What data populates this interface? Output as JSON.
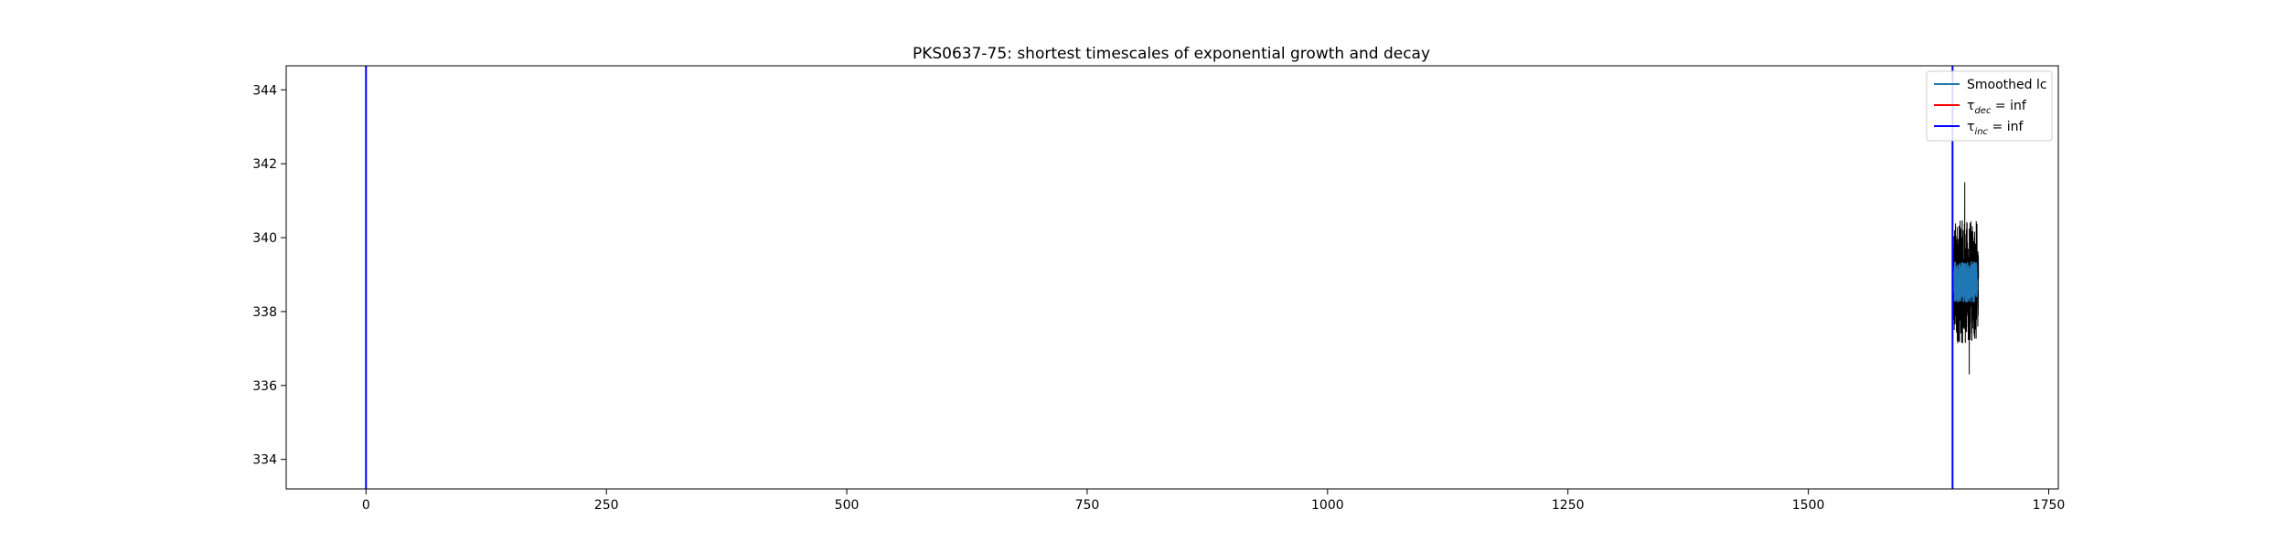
{
  "chart_data": {
    "type": "line",
    "title": "PKS0637-75: shortest timescales of exponential growth and decay",
    "xlabel": "",
    "ylabel": "",
    "xlim": [
      -83,
      1760
    ],
    "ylim": [
      333.2,
      344.65
    ],
    "x_ticks": [
      0,
      250,
      500,
      750,
      1000,
      1250,
      1500,
      1750
    ],
    "y_ticks": [
      334,
      336,
      338,
      340,
      342,
      344
    ],
    "grid": false,
    "legend_position": "top-right",
    "legend": [
      {
        "label": "Smoothed lc",
        "color": "#1f77b4"
      },
      {
        "label": "τ",
        "sub": "dec",
        "suffix": " = inf",
        "color": "#ff0000"
      },
      {
        "label": "τ",
        "sub": "inc",
        "suffix": " = inf",
        "color": "#0000ff"
      }
    ],
    "vlines": [
      {
        "x": 0,
        "color": "#0000ff"
      },
      {
        "x": 1650,
        "color": "#0000ff"
      }
    ],
    "series": [
      {
        "role": "raw light curve",
        "color": "#000000",
        "x_range": [
          1650,
          1677
        ],
        "center": 338.8,
        "y_min": 336.3,
        "y_max": 341.5
      },
      {
        "role": "smoothed",
        "name": "Smoothed lc",
        "color": "#1f77b4",
        "x_range": [
          1651,
          1676
        ],
        "center": 338.8,
        "y_min": 337.9,
        "y_max": 339.7
      }
    ]
  }
}
